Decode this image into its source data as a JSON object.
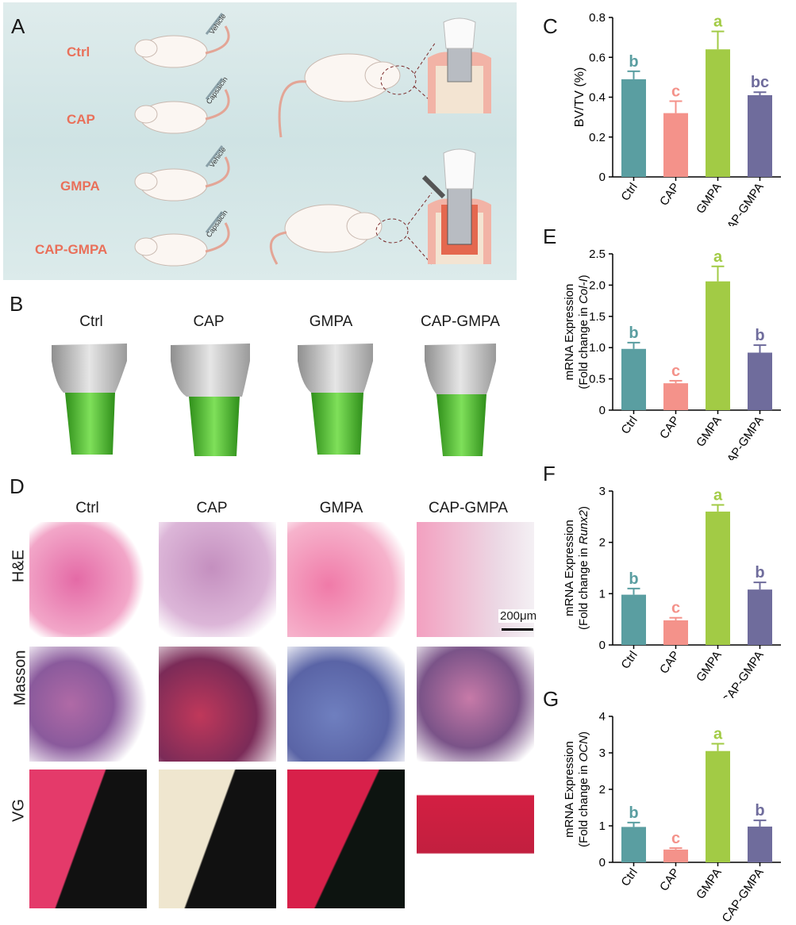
{
  "panels": {
    "A": "A",
    "B": "B",
    "C": "C",
    "D": "D",
    "E": "E",
    "F": "F",
    "G": "G"
  },
  "panelA": {
    "groups": [
      "Ctrl",
      "CAP",
      "GMPA",
      "CAP-GMPA"
    ],
    "injections": [
      "Vehicle",
      "Capsaicin",
      "Vehicle",
      "Capsaicin"
    ],
    "colors": {
      "group_label": "#e9705a",
      "background": "#d6e8e8",
      "gum": "#f2b3a6",
      "bone": "#f3e4d2"
    }
  },
  "panelB": {
    "labels": [
      "Ctrl",
      "CAP",
      "GMPA",
      "CAP-GMPA"
    ]
  },
  "panelD": {
    "columns": [
      "Ctrl",
      "CAP",
      "GMPA",
      "CAP-GMPA"
    ],
    "rows": [
      "H&E",
      "Masson",
      "VG"
    ],
    "scale_bar": "200μm"
  },
  "colors": {
    "Ctrl": "#5a9ea1",
    "CAP": "#f4928a",
    "GMPA": "#a2cb45",
    "CAP-GMPA": "#6f6c9c"
  },
  "chart_data": [
    {
      "id": "C",
      "type": "bar",
      "categories": [
        "Ctrl",
        "CAP",
        "GMPA",
        "CAP-GMPA"
      ],
      "values": [
        0.49,
        0.32,
        0.64,
        0.41
      ],
      "errors": [
        0.04,
        0.06,
        0.09,
        0.015
      ],
      "letters": [
        "b",
        "c",
        "a",
        "bc"
      ],
      "ylabel": "BV/TV (%)",
      "ylim": [
        0,
        0.8
      ],
      "yticks": [
        "0",
        "0.2",
        "0.4",
        "0.6",
        "0.8"
      ],
      "tickvals": [
        0,
        0.2,
        0.4,
        0.6,
        0.8
      ]
    },
    {
      "id": "E",
      "type": "bar",
      "categories": [
        "Ctrl",
        "CAP",
        "GMPA",
        "CAP-GMPA"
      ],
      "values": [
        0.98,
        0.43,
        2.06,
        0.92
      ],
      "errors": [
        0.1,
        0.04,
        0.24,
        0.12
      ],
      "letters": [
        "b",
        "c",
        "a",
        "b"
      ],
      "ylabel": "mRNA Expression",
      "ylabel2_pre": "(Fold change in ",
      "ylabel2_gene": "Col-I",
      "ylabel2_post": ")",
      "ylim": [
        0,
        2.5
      ],
      "yticks": [
        "0",
        "0.5",
        "1.0",
        "1.5",
        "2.0",
        "2.5"
      ],
      "tickvals": [
        0,
        0.5,
        1.0,
        1.5,
        2.0,
        2.5
      ]
    },
    {
      "id": "F",
      "type": "bar",
      "categories": [
        "Ctrl",
        "CAP",
        "GMPA",
        "CAP-GMPA"
      ],
      "values": [
        0.98,
        0.48,
        2.6,
        1.08
      ],
      "errors": [
        0.12,
        0.05,
        0.13,
        0.14
      ],
      "letters": [
        "b",
        "c",
        "a",
        "b"
      ],
      "ylabel": "mRNA Expression",
      "ylabel2_pre": "(Fold change in ",
      "ylabel2_gene": "Runx2",
      "ylabel2_post": ")",
      "ylim": [
        0,
        3
      ],
      "yticks": [
        "0",
        "1",
        "2",
        "3"
      ],
      "tickvals": [
        0,
        1,
        2,
        3
      ]
    },
    {
      "id": "G",
      "type": "bar",
      "categories": [
        "Ctrl",
        "CAP",
        "GMPA",
        "CAP-GMPA"
      ],
      "values": [
        0.97,
        0.35,
        3.05,
        0.98
      ],
      "errors": [
        0.12,
        0.04,
        0.2,
        0.17
      ],
      "letters": [
        "b",
        "c",
        "a",
        "b"
      ],
      "ylabel": "mRNA Expression",
      "ylabel2_pre": "(Fold change in ",
      "ylabel2_gene": "OCN",
      "ylabel2_post": ")",
      "ylim": [
        0,
        4
      ],
      "yticks": [
        "0",
        "1",
        "2",
        "3",
        "4"
      ],
      "tickvals": [
        0,
        1,
        2,
        3,
        4
      ]
    }
  ]
}
